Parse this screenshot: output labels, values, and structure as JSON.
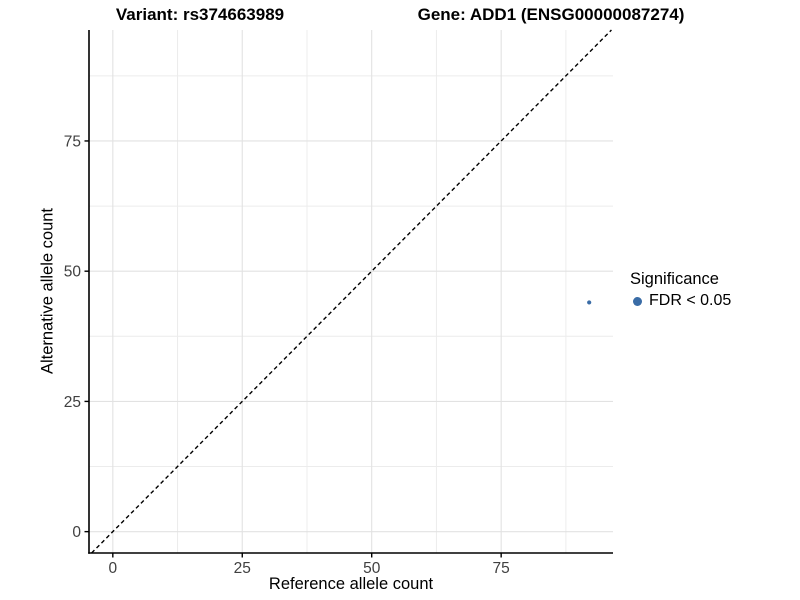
{
  "titles": {
    "variant": "Variant: rs374663989",
    "gene": "Gene: ADD1 (ENSG00000087274)"
  },
  "legend": {
    "title": "Significance",
    "items": [
      {
        "label": "FDR < 0.05",
        "color": "#3a6ca6",
        "marker": "circle"
      }
    ]
  },
  "chart_data": {
    "type": "scatter",
    "title": "Variant: rs374663989    Gene: ADD1 (ENSG00000087274)",
    "xlabel": "Reference allele count",
    "ylabel": "Alternative allele count",
    "x_ticks": [
      0,
      25,
      50,
      75
    ],
    "y_ticks": [
      0,
      25,
      50,
      75
    ],
    "tick_step": 25,
    "xlim": [
      -4.6,
      96.6
    ],
    "ylim": [
      -4.1,
      96.3
    ],
    "grid": "major+minor",
    "legend_position": "right",
    "series": [
      {
        "name": "FDR < 0.05",
        "color": "#3a6ca6",
        "points": [
          {
            "x": 92,
            "y": 44
          }
        ],
        "point_radius_px": 2.1
      }
    ],
    "reference_line": {
      "type": "identity",
      "equation": "y = x",
      "style": "dashed",
      "color": "#000000"
    },
    "colors": {
      "axis_line": "#000000",
      "tick_label": "#404040",
      "grid_major": "#e2e2e2",
      "grid_minor": "#ececec",
      "point": "#3a6ca6"
    }
  }
}
